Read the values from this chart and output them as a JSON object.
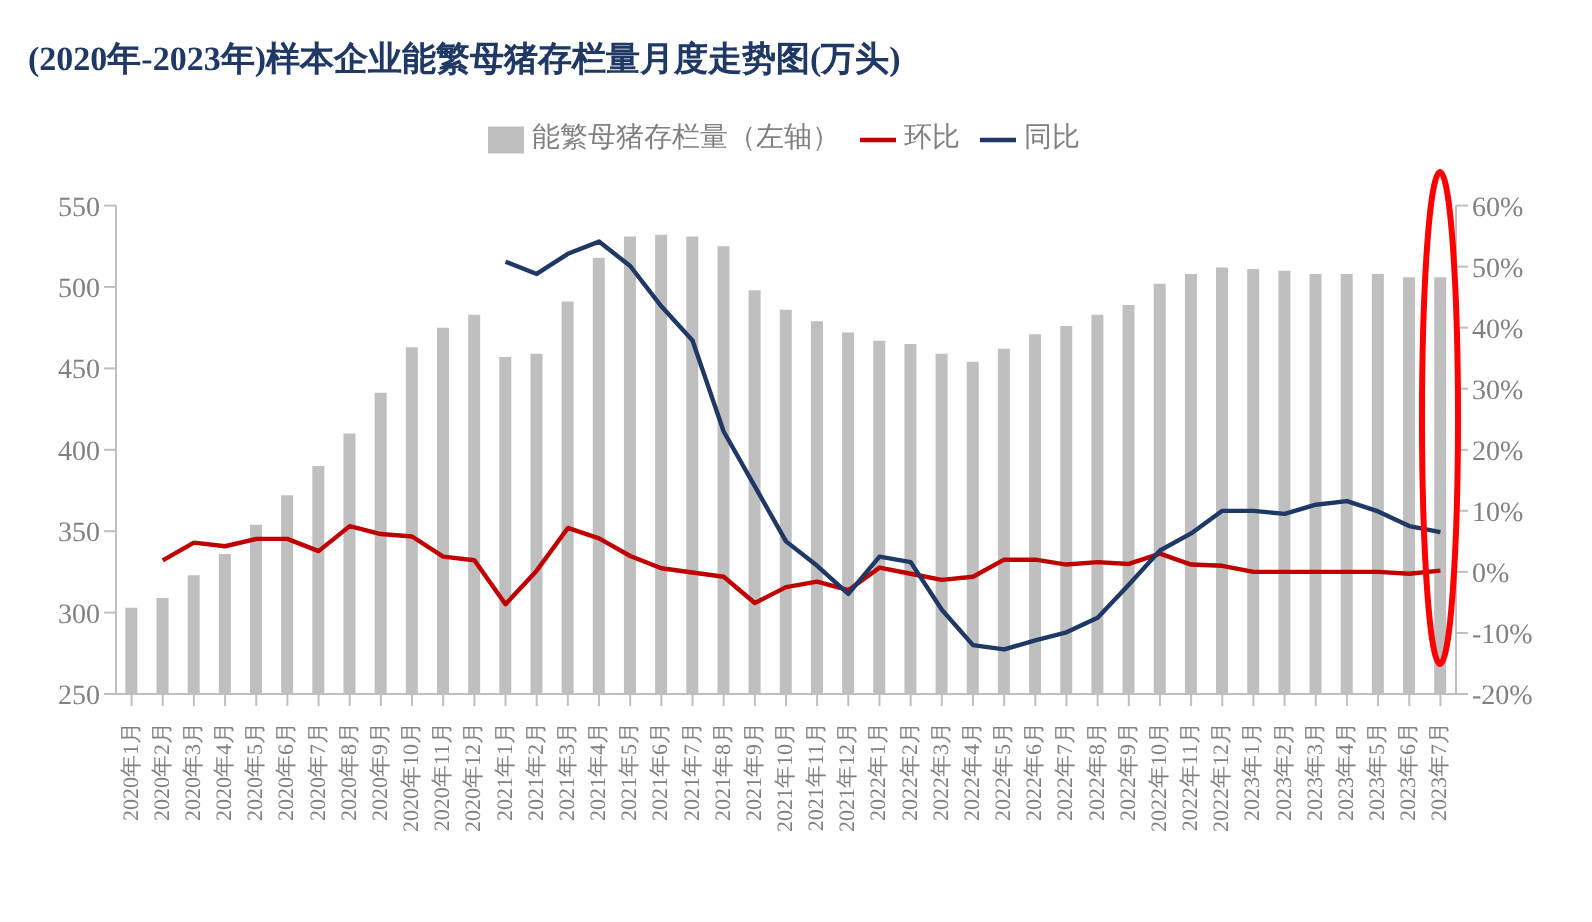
{
  "chart_data": {
    "type": "bar",
    "title": "(2020年-2023年)样本企业能繁母猪存栏量月度走势图(万头)",
    "categories": [
      "2020年1月",
      "2020年2月",
      "2020年3月",
      "2020年4月",
      "2020年5月",
      "2020年6月",
      "2020年7月",
      "2020年8月",
      "2020年9月",
      "2020年10月",
      "2020年11月",
      "2020年12月",
      "2021年1月",
      "2021年2月",
      "2021年3月",
      "2021年4月",
      "2021年5月",
      "2021年6月",
      "2021年7月",
      "2021年8月",
      "2021年9月",
      "2021年10月",
      "2021年11月",
      "2021年12月",
      "2022年1月",
      "2022年2月",
      "2022年3月",
      "2022年4月",
      "2022年5月",
      "2022年6月",
      "2022年7月",
      "2022年8月",
      "2022年9月",
      "2022年10月",
      "2022年11月",
      "2022年12月",
      "2023年1月",
      "2023年2月",
      "2023年3月",
      "2023年4月",
      "2023年5月",
      "2023年6月",
      "2023年7月"
    ],
    "series": [
      {
        "name": "能繁母猪存栏量（左轴）",
        "color": "#bfbfbf",
        "values": [
          303,
          309,
          323,
          336,
          354,
          372,
          390,
          410,
          435,
          463,
          475,
          483,
          457,
          459,
          491,
          518,
          531,
          532,
          531,
          525,
          498,
          486,
          479,
          472,
          467,
          465,
          459,
          454,
          462,
          471,
          476,
          483,
          489,
          502,
          508,
          512,
          511,
          510,
          508,
          508,
          508,
          506,
          506
        ]
      },
      {
        "name": "环比",
        "type": "line",
        "axis": "y2",
        "color": "#c00000",
        "values": [
          null,
          1.9,
          4.8,
          4.2,
          5.4,
          5.4,
          3.4,
          7.5,
          6.2,
          5.8,
          2.5,
          1.9,
          -5.3,
          0.2,
          7.2,
          5.5,
          2.6,
          0.6,
          -0.1,
          -0.8,
          -5.1,
          -2.5,
          -1.6,
          -3,
          0.7,
          -0.3,
          -1.3,
          -0.8,
          2,
          2,
          1.2,
          1.6,
          1.3,
          3,
          1.2,
          1,
          0,
          0,
          0,
          0,
          0,
          -0.3,
          0.2
        ]
      },
      {
        "name": "同比",
        "type": "line",
        "axis": "y2",
        "color": "#1f3864",
        "values": [
          null,
          null,
          null,
          null,
          null,
          null,
          null,
          null,
          null,
          null,
          null,
          null,
          50.8,
          48.8,
          52.1,
          54.1,
          50.1,
          43.5,
          37.9,
          23,
          14,
          5,
          1,
          -3.6,
          2.5,
          1.6,
          -6.2,
          -12,
          -12.7,
          -11.2,
          -9.9,
          -7.5,
          -2.1,
          3.5,
          6.3,
          10,
          10,
          9.5,
          11,
          11.6,
          9.9,
          7.5,
          6.5
        ]
      }
    ],
    "ylim": [
      250,
      550
    ],
    "yticks": [
      250,
      300,
      350,
      400,
      450,
      500,
      550
    ],
    "y2lim": [
      -20,
      60
    ],
    "y2ticks": [
      {
        "value": -20,
        "label": "-20%"
      },
      {
        "value": -10,
        "label": "-10%"
      },
      {
        "value": 0,
        "label": "0%"
      },
      {
        "value": 10,
        "label": "10%"
      },
      {
        "value": 20,
        "label": "20%"
      },
      {
        "value": 30,
        "label": "30%"
      },
      {
        "value": 40,
        "label": "40%"
      },
      {
        "value": 50,
        "label": "50%"
      },
      {
        "value": 60,
        "label": "60%"
      }
    ],
    "legend": "top",
    "marker": "none",
    "line_style": "solid",
    "grid": false
  }
}
